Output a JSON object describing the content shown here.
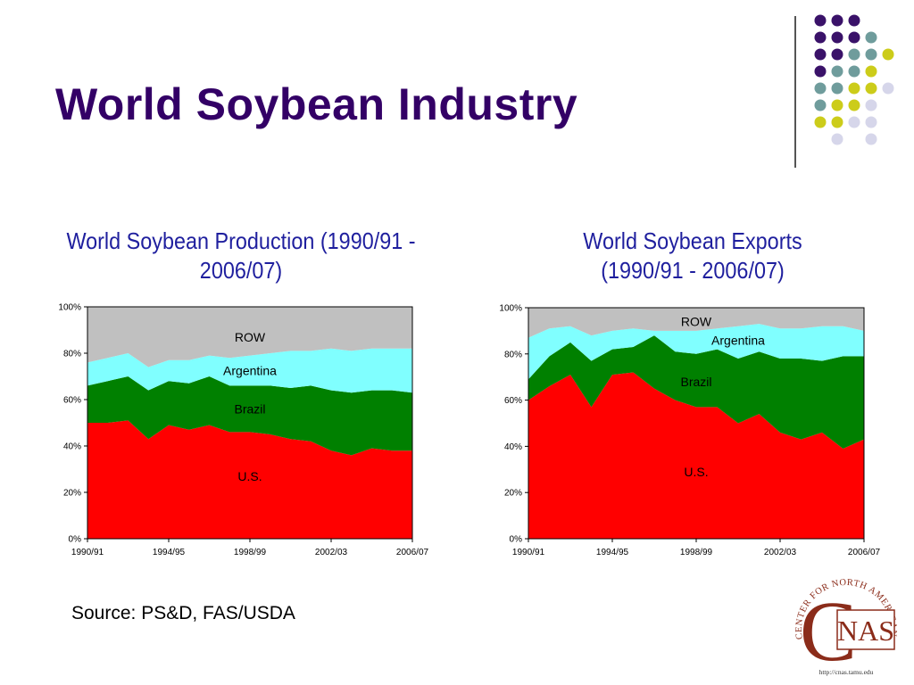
{
  "slide": {
    "title": "World Soybean Industry",
    "source": "Source: PS&D, FAS/USDA"
  },
  "logo": {
    "ring_text": "CENTER FOR NORTH AMERICAN STUDIES",
    "letters": "NAS",
    "big_letter": "C",
    "url": "http://cnas.tamu.edu"
  },
  "colors": {
    "title": "#330066",
    "chart_title": "#1f1f9e",
    "us": "#ff0000",
    "brazil": "#008000",
    "argentina": "#80ffff",
    "row": "#c0c0c0",
    "dot_purple": "#3a1269",
    "dot_teal": "#6f9c9c",
    "dot_yellow": "#cccc1a",
    "dot_lavender": "#d6d6ea",
    "logo_brown": "#8b2c1a"
  },
  "decoration": {
    "dot_grid": [
      [
        "purple",
        "purple",
        "purple",
        null
      ],
      [
        "purple",
        "purple",
        "purple",
        "teal"
      ],
      [
        "purple",
        "purple",
        "teal",
        "teal",
        "yellow"
      ],
      [
        "purple",
        "teal",
        "teal",
        "yellow"
      ],
      [
        "teal",
        "teal",
        "yellow",
        "yellow",
        "lavender"
      ],
      [
        "teal",
        "yellow",
        "yellow",
        "lavender"
      ],
      [
        "yellow",
        "yellow",
        "lavender",
        "lavender"
      ],
      [
        null,
        "lavender",
        null,
        "lavender"
      ]
    ]
  },
  "chart_data": [
    {
      "type": "area",
      "stacked": true,
      "title": "World Soybean Production (1990/91 - 2006/07)",
      "title_lines": [
        "World Soybean Production (1990/91 -",
        "2006/07)"
      ],
      "xlabel": "",
      "ylabel": "",
      "ylim": [
        0,
        100
      ],
      "y_ticks": [
        "0%",
        "20%",
        "40%",
        "60%",
        "80%",
        "100%"
      ],
      "x": [
        "1990/91",
        "1991/92",
        "1992/93",
        "1993/94",
        "1994/95",
        "1995/96",
        "1996/97",
        "1997/98",
        "1998/99",
        "1999/00",
        "2000/01",
        "2001/02",
        "2002/03",
        "2003/04",
        "2004/05",
        "2005/06",
        "2006/07"
      ],
      "x_tick_labels": [
        "1990/91",
        "1994/95",
        "1998/99",
        "2002/03",
        "2006/07"
      ],
      "grid": false,
      "series": [
        {
          "name": "U.S.",
          "color_key": "us",
          "values": [
            50,
            50,
            51,
            43,
            49,
            47,
            49,
            46,
            46,
            45,
            43,
            42,
            38,
            36,
            39,
            38,
            38
          ]
        },
        {
          "name": "Brazil",
          "color_key": "brazil",
          "values": [
            16,
            18,
            19,
            21,
            19,
            20,
            21,
            20,
            20,
            21,
            22,
            24,
            26,
            27,
            25,
            26,
            25
          ]
        },
        {
          "name": "Argentina",
          "color_key": "argentina",
          "values": [
            10,
            10,
            10,
            10,
            9,
            10,
            9,
            12,
            13,
            14,
            16,
            15,
            18,
            18,
            18,
            18,
            19
          ]
        },
        {
          "name": "ROW",
          "color_key": "row",
          "values": [
            24,
            22,
            20,
            26,
            23,
            23,
            21,
            22,
            21,
            20,
            19,
            19,
            18,
            19,
            18,
            18,
            18
          ]
        }
      ],
      "area_labels": [
        {
          "text": "ROW",
          "x_index": 8,
          "y_value": 87
        },
        {
          "text": "Argentina",
          "x_index": 8,
          "y_value": 72.5
        },
        {
          "text": "Brazil",
          "x_index": 8,
          "y_value": 56
        },
        {
          "text": "U.S.",
          "x_index": 8,
          "y_value": 27
        }
      ]
    },
    {
      "type": "area",
      "stacked": true,
      "title": "World Soybean Exports (1990/91 - 2006/07)",
      "title_lines": [
        "World Soybean Exports",
        "(1990/91 - 2006/07)"
      ],
      "xlabel": "",
      "ylabel": "",
      "ylim": [
        0,
        100
      ],
      "y_ticks": [
        "0%",
        "20%",
        "40%",
        "60%",
        "80%",
        "100%"
      ],
      "x": [
        "1990/91",
        "1991/92",
        "1992/93",
        "1993/94",
        "1994/95",
        "1995/96",
        "1996/97",
        "1997/98",
        "1998/99",
        "1999/00",
        "2000/01",
        "2001/02",
        "2002/03",
        "2003/04",
        "2004/05",
        "2005/06",
        "2006/07"
      ],
      "x_tick_labels": [
        "1990/91",
        "1994/95",
        "1998/99",
        "2002/03",
        "2006/07"
      ],
      "grid": false,
      "series": [
        {
          "name": "U.S.",
          "color_key": "us",
          "values": [
            60,
            66,
            71,
            57,
            71,
            72,
            65,
            60,
            57,
            57,
            50,
            54,
            46,
            43,
            46,
            39,
            43
          ]
        },
        {
          "name": "Brazil",
          "color_key": "brazil",
          "values": [
            9,
            13,
            14,
            20,
            11,
            11,
            23,
            21,
            23,
            25,
            28,
            27,
            32,
            35,
            31,
            40,
            36
          ]
        },
        {
          "name": "Argentina",
          "color_key": "argentina",
          "values": [
            18,
            12,
            7,
            11,
            8,
            8,
            2,
            9,
            10,
            9,
            14,
            12,
            13,
            13,
            15,
            13,
            11
          ]
        },
        {
          "name": "ROW",
          "color_key": "row",
          "values": [
            13,
            9,
            8,
            12,
            10,
            9,
            10,
            10,
            10,
            9,
            8,
            7,
            9,
            9,
            8,
            8,
            10
          ]
        }
      ],
      "area_labels": [
        {
          "text": "ROW",
          "x_index": 8,
          "y_value": 94
        },
        {
          "text": "Argentina",
          "x_index": 10,
          "y_value": 86
        },
        {
          "text": "Brazil",
          "x_index": 8,
          "y_value": 68
        },
        {
          "text": "U.S.",
          "x_index": 8,
          "y_value": 29
        }
      ]
    }
  ]
}
